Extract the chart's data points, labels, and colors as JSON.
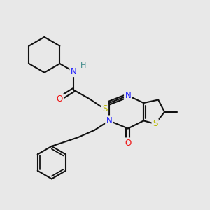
{
  "bg_color": "#e8e8e8",
  "atom_colors": {
    "C": "#111111",
    "N": "#1a1aff",
    "O": "#ee1111",
    "S": "#b8b800",
    "H": "#3a8888"
  },
  "bond_color": "#111111",
  "bond_width": 1.5,
  "figsize": [
    3.0,
    3.0
  ],
  "dpi": 100,
  "font_size": 8.5,
  "xlim": [
    0,
    10
  ],
  "ylim": [
    0,
    10
  ]
}
